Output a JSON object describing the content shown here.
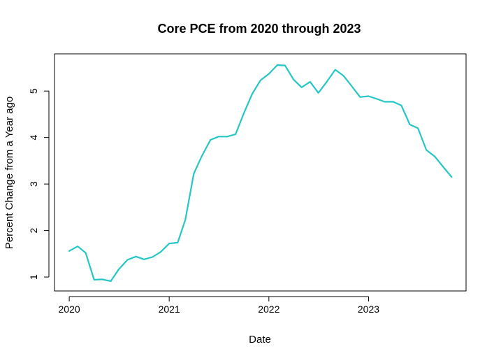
{
  "chart_data": {
    "type": "line",
    "title": "Core PCE from 2020 through 2023",
    "xlabel": "Date",
    "ylabel": "Percent Change from a Year ago",
    "xlim": [
      "2019-11-08",
      "2023-12-24"
    ],
    "ylim": [
      0.7,
      5.8
    ],
    "x_ticks": [
      "2020",
      "2021",
      "2022",
      "2023"
    ],
    "y_ticks": [
      "1",
      "2",
      "3",
      "4",
      "5"
    ],
    "grid": false,
    "legend": "none",
    "line_color": "#26C6C6",
    "series": [
      {
        "x": [
          "2020-01-01",
          "2020-02-01",
          "2020-03-01",
          "2020-04-01",
          "2020-05-01",
          "2020-06-01",
          "2020-07-01",
          "2020-08-01",
          "2020-09-01",
          "2020-10-01",
          "2020-11-01",
          "2020-12-01",
          "2021-01-01",
          "2021-02-01",
          "2021-03-01",
          "2021-04-01",
          "2021-05-01",
          "2021-06-01",
          "2021-07-01",
          "2021-08-01",
          "2021-09-01",
          "2021-10-01",
          "2021-11-01",
          "2021-12-01",
          "2022-01-01",
          "2022-02-01",
          "2022-03-01",
          "2022-04-01",
          "2022-05-01",
          "2022-06-01",
          "2022-07-01",
          "2022-08-01",
          "2022-09-01",
          "2022-10-01",
          "2022-11-01",
          "2022-12-01",
          "2023-01-01",
          "2023-02-01",
          "2023-03-01",
          "2023-04-01",
          "2023-05-01",
          "2023-06-01",
          "2023-07-01",
          "2023-08-01",
          "2023-09-01",
          "2023-10-01",
          "2023-11-01"
        ],
        "values": [
          1.56,
          1.66,
          1.52,
          0.94,
          0.95,
          0.91,
          1.17,
          1.37,
          1.44,
          1.38,
          1.43,
          1.54,
          1.72,
          1.74,
          2.23,
          3.22,
          3.61,
          3.95,
          4.02,
          4.02,
          4.07,
          4.52,
          4.94,
          5.23,
          5.37,
          5.56,
          5.55,
          5.25,
          5.08,
          5.2,
          4.96,
          5.2,
          5.46,
          5.33,
          5.1,
          4.87,
          4.89,
          4.83,
          4.77,
          4.77,
          4.69,
          4.28,
          4.2,
          3.73,
          3.59,
          3.37,
          3.15
        ]
      }
    ]
  }
}
